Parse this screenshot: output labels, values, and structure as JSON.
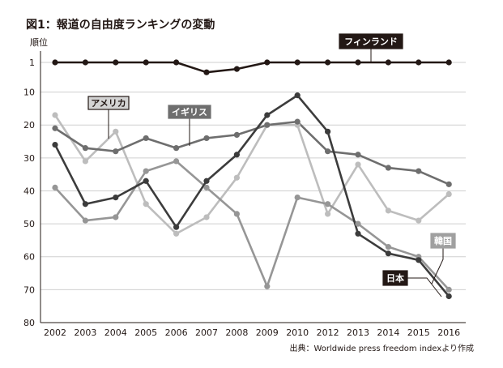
{
  "chart_data": {
    "type": "line",
    "title": "図1：報道の自由度ランキングの変動",
    "ylabel": "順位",
    "xlabel": "",
    "source": "出典：Worldwide press freedom indexより作成",
    "categories": [
      "2002",
      "2003",
      "2004",
      "2005",
      "2006",
      "2007",
      "2008",
      "2009",
      "2010",
      "2012",
      "2013",
      "2014",
      "2015",
      "2016"
    ],
    "y_ticks": [
      1,
      10,
      20,
      30,
      40,
      50,
      60,
      70,
      80
    ],
    "ylim": [
      1,
      80
    ],
    "y_inverted": true,
    "grid": "horizontal",
    "series": [
      {
        "name": "フィンランド",
        "color": "#231815",
        "label_style": "dark",
        "values": [
          1,
          1,
          1,
          1,
          1,
          4,
          3,
          1,
          1,
          1,
          1,
          1,
          1,
          1
        ]
      },
      {
        "name": "イギリス",
        "color": "#6e6e6e",
        "label_style": "mid",
        "values": [
          21,
          27,
          28,
          24,
          27,
          24,
          23,
          20,
          19,
          28,
          29,
          33,
          34,
          38
        ]
      },
      {
        "name": "アメリカ",
        "color": "#bdbdbd",
        "label_style": "light-outline",
        "values": [
          17,
          31,
          22,
          44,
          53,
          48,
          36,
          20,
          20,
          47,
          32,
          46,
          49,
          41
        ]
      },
      {
        "name": "日本",
        "color": "#3c3c3c",
        "label_style": "dark",
        "values": [
          26,
          44,
          42,
          37,
          51,
          37,
          29,
          17,
          11,
          22,
          53,
          59,
          61,
          72
        ]
      },
      {
        "name": "韓国",
        "color": "#969696",
        "label_style": "light",
        "values": [
          39,
          49,
          48,
          34,
          31,
          39,
          47,
          69,
          42,
          44,
          50,
          57,
          60,
          70
        ]
      }
    ]
  }
}
